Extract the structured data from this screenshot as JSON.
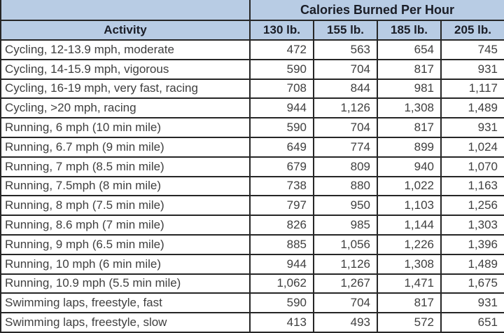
{
  "table": {
    "title": "Calories Burned Per Hour",
    "activity_header": "Activity",
    "weight_headers": [
      "130 lb.",
      "155 lb.",
      "185 lb.",
      "205 lb."
    ],
    "rows": [
      {
        "activity": "Cycling, 12-13.9 mph, moderate",
        "values": [
          "472",
          "563",
          "654",
          "745"
        ]
      },
      {
        "activity": "Cycling, 14-15.9 mph, vigorous",
        "values": [
          "590",
          "704",
          "817",
          "931"
        ]
      },
      {
        "activity": "Cycling, 16-19 mph, very fast, racing",
        "values": [
          "708",
          "844",
          "981",
          "1,117"
        ]
      },
      {
        "activity": "Cycling, >20 mph, racing",
        "values": [
          "944",
          "1,126",
          "1,308",
          "1,489"
        ]
      },
      {
        "activity": "Running, 6 mph (10 min mile)",
        "values": [
          "590",
          "704",
          "817",
          "931"
        ]
      },
      {
        "activity": "Running, 6.7 mph (9 min mile)",
        "values": [
          "649",
          "774",
          "899",
          "1,024"
        ]
      },
      {
        "activity": "Running, 7 mph (8.5 min mile)",
        "values": [
          "679",
          "809",
          "940",
          "1,070"
        ]
      },
      {
        "activity": "Running, 7.5mph (8 min mile)",
        "values": [
          "738",
          "880",
          "1,022",
          "1,163"
        ]
      },
      {
        "activity": "Running, 8 mph (7.5 min mile)",
        "values": [
          "797",
          "950",
          "1,103",
          "1,256"
        ]
      },
      {
        "activity": "Running, 8.6 mph (7 min mile)",
        "values": [
          "826",
          "985",
          "1,144",
          "1,303"
        ]
      },
      {
        "activity": "Running, 9 mph (6.5 min mile)",
        "values": [
          "885",
          "1,056",
          "1,226",
          "1,396"
        ]
      },
      {
        "activity": "Running, 10 mph (6 min mile)",
        "values": [
          "944",
          "1,126",
          "1,308",
          "1,489"
        ]
      },
      {
        "activity": "Running, 10.9 mph (5.5 min mile)",
        "values": [
          "1,062",
          "1,267",
          "1,471",
          "1,675"
        ]
      },
      {
        "activity": "Swimming laps, freestyle, fast",
        "values": [
          "590",
          "704",
          "817",
          "931"
        ]
      },
      {
        "activity": "Swimming laps, freestyle, slow",
        "values": [
          "413",
          "493",
          "572",
          "651"
        ]
      }
    ]
  },
  "colors": {
    "header_bg": "#b8cce4",
    "border": "#262626",
    "header_text": "#1a1d26",
    "body_text": "#3f3f3f"
  },
  "chart_data": {
    "type": "table",
    "title": "Calories Burned Per Hour",
    "columns": [
      "Activity",
      "130 lb.",
      "155 lb.",
      "185 lb.",
      "205 lb."
    ],
    "rows": [
      [
        "Cycling, 12-13.9 mph, moderate",
        472,
        563,
        654,
        745
      ],
      [
        "Cycling, 14-15.9 mph, vigorous",
        590,
        704,
        817,
        931
      ],
      [
        "Cycling, 16-19 mph, very fast, racing",
        708,
        844,
        981,
        1117
      ],
      [
        "Cycling, >20 mph, racing",
        944,
        1126,
        1308,
        1489
      ],
      [
        "Running, 6 mph (10 min mile)",
        590,
        704,
        817,
        931
      ],
      [
        "Running, 6.7 mph (9 min mile)",
        649,
        774,
        899,
        1024
      ],
      [
        "Running, 7 mph (8.5 min mile)",
        679,
        809,
        940,
        1070
      ],
      [
        "Running, 7.5mph (8 min mile)",
        738,
        880,
        1022,
        1163
      ],
      [
        "Running, 8 mph (7.5 min mile)",
        797,
        950,
        1103,
        1256
      ],
      [
        "Running, 8.6 mph (7 min mile)",
        826,
        985,
        1144,
        1303
      ],
      [
        "Running, 9 mph (6.5 min mile)",
        885,
        1056,
        1226,
        1396
      ],
      [
        "Running, 10 mph (6 min mile)",
        944,
        1126,
        1308,
        1489
      ],
      [
        "Running, 10.9 mph (5.5 min mile)",
        1062,
        1267,
        1471,
        1675
      ],
      [
        "Swimming laps, freestyle, fast",
        590,
        704,
        817,
        931
      ],
      [
        "Swimming laps, freestyle, slow",
        413,
        493,
        572,
        651
      ]
    ]
  }
}
